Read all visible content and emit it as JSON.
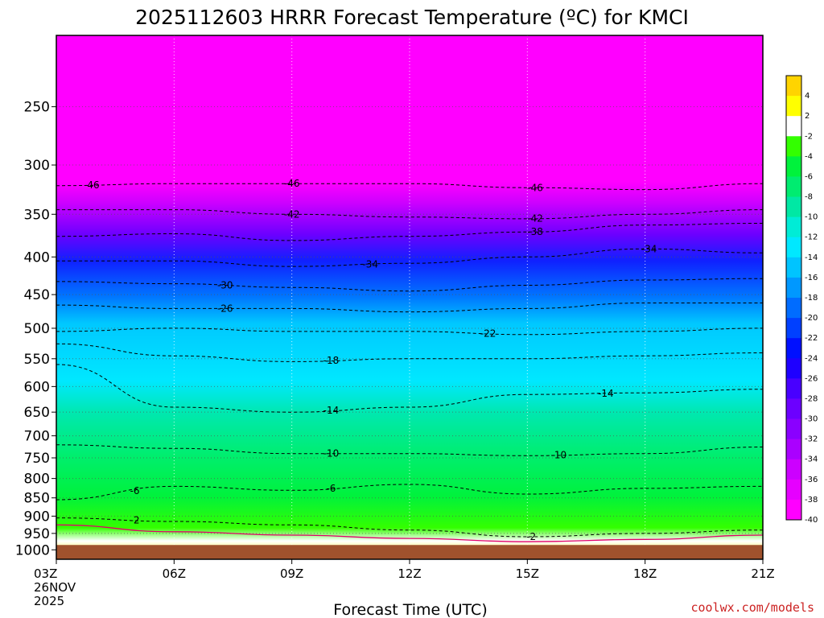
{
  "chart_data": {
    "type": "heatmap",
    "title": "2025112603 HRRR Forecast Temperature (ºC) for KMCI",
    "xlabel": "Forecast Time (UTC)",
    "ylabel": "",
    "x_ticks": [
      "03Z",
      "06Z",
      "09Z",
      "12Z",
      "15Z",
      "18Z",
      "21Z"
    ],
    "x_start_labels": [
      "26NOV",
      "2025"
    ],
    "x_range_hours": [
      3,
      21
    ],
    "y_ticks": [
      250,
      300,
      350,
      400,
      450,
      500,
      550,
      600,
      650,
      700,
      750,
      800,
      850,
      900,
      950,
      1000
    ],
    "y_range": [
      1030,
      200
    ],
    "y_scale": "log",
    "grid": true,
    "colorbar": {
      "labels": [
        "4",
        "2",
        "-2",
        "-4",
        "-6",
        "-8",
        "-10",
        "-12",
        "-14",
        "-16",
        "-18",
        "-20",
        "-22",
        "-24",
        "-26",
        "-28",
        "-30",
        "-32",
        "-34",
        "-36",
        "-38",
        "-40"
      ],
      "colors": [
        "#ffd400",
        "#ffff00",
        "#ffffff",
        "#33ff00",
        "#00f23c",
        "#00ec70",
        "#00e8a4",
        "#00ecd6",
        "#00e8ff",
        "#00c4ff",
        "#0098ff",
        "#006cff",
        "#0040ff",
        "#0010ff",
        "#1e00ff",
        "#4800ff",
        "#6c00ff",
        "#8a00ff",
        "#aa00ff",
        "#cc00ff",
        "#e600ff",
        "#ff00ff"
      ]
    },
    "isotherms": [
      {
        "label": "-46",
        "p": [
          320,
          318,
          318,
          318,
          322,
          324,
          318
        ],
        "label_pos": [
          [
            3.9,
            -1
          ],
          [
            9.0,
            -1
          ],
          [
            15.2,
            -1
          ]
        ]
      },
      {
        "label": "-42",
        "p": [
          345,
          345,
          350,
          353,
          355,
          350,
          345
        ],
        "label_pos": [
          [
            9.0,
            -1
          ],
          [
            15.2,
            -1
          ]
        ]
      },
      {
        "label": "-38",
        "p": [
          375,
          372,
          380,
          375,
          370,
          362,
          360
        ],
        "label_pos": [
          [
            15.2,
            -1
          ]
        ]
      },
      {
        "label": "-34",
        "p": [
          405,
          405,
          412,
          408,
          400,
          390,
          395
        ],
        "label_pos": [
          [
            11.0,
            -1
          ],
          [
            18.1,
            -1
          ]
        ]
      },
      {
        "label": "-30",
        "p": [
          432,
          435,
          440,
          445,
          437,
          430,
          428
        ],
        "label_pos": [
          [
            7.3,
            -1
          ]
        ]
      },
      {
        "label": "-26",
        "p": [
          465,
          470,
          470,
          475,
          470,
          462,
          462
        ],
        "label_pos": [
          [
            7.3,
            -1
          ]
        ]
      },
      {
        "label": "-22",
        "p": [
          505,
          500,
          505,
          505,
          510,
          505,
          500
        ],
        "label_pos": [
          [
            14.0,
            -1
          ]
        ]
      },
      {
        "label": "-18",
        "p": [
          525,
          545,
          555,
          550,
          550,
          545,
          540
        ],
        "label_pos": [
          [
            10.0,
            -1
          ]
        ]
      },
      {
        "label": "-14",
        "p": [
          560,
          640,
          650,
          640,
          615,
          612,
          605
        ],
        "label_pos": [
          [
            10.0,
            -1
          ],
          [
            17.0,
            -1
          ]
        ]
      },
      {
        "label": "-10",
        "p": [
          720,
          728,
          740,
          740,
          745,
          740,
          725
        ],
        "label_pos": [
          [
            10.0,
            -1
          ],
          [
            15.8,
            -1
          ]
        ]
      },
      {
        "label": "-6",
        "p": [
          855,
          820,
          830,
          815,
          840,
          825,
          820
        ],
        "label_pos": [
          [
            5.0,
            -1
          ],
          [
            10.0,
            -1
          ]
        ]
      },
      {
        "label": "-2",
        "p": [
          905,
          915,
          925,
          940,
          960,
          950,
          940
        ],
        "label_pos": [
          [
            5.0,
            -1
          ],
          [
            15.1,
            -1
          ]
        ]
      }
    ],
    "freezing_line": {
      "label": "0",
      "p": [
        925,
        945,
        955,
        965,
        975,
        968,
        955
      ]
    },
    "surface_pressure": 985,
    "credit": "coolwx.com/models"
  }
}
